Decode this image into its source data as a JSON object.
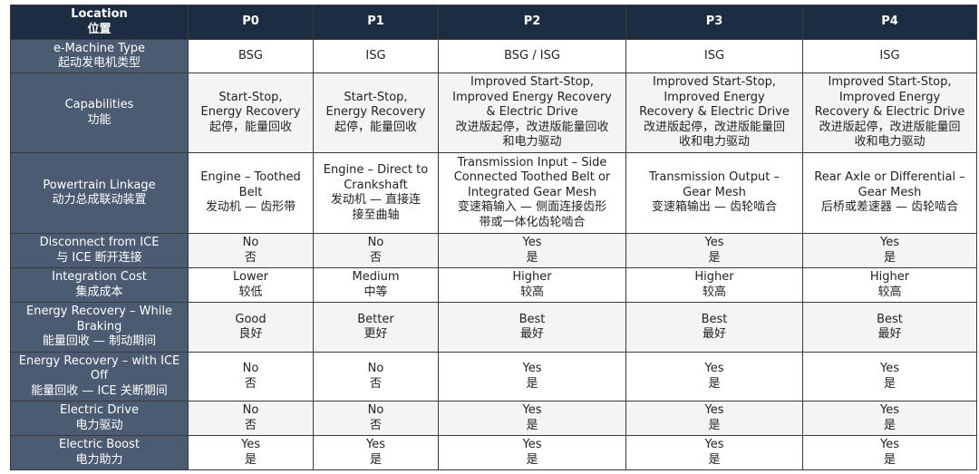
{
  "header": {
    "label": "Location\n位置",
    "columns": [
      "P0",
      "P1",
      "P2",
      "P3",
      "P4"
    ]
  },
  "rows": [
    {
      "label": "e-Machine Type\n起动发电机类型",
      "cells": [
        "BSG",
        "ISG",
        "BSG / ISG",
        "ISG",
        "ISG"
      ]
    },
    {
      "label": "Capabilities\n功能",
      "cells": [
        "Start-Stop,\nEnergy Recovery\n起停，能量回收",
        "Start-Stop,\nEnergy Recovery\n起停，能量回收",
        "Improved Start-Stop,\nImproved Energy Recovery\n& Electric Drive\n改进版起停，改进版能量回收\n和电力驱动",
        "Improved Start-Stop,\nImproved Energy\nRecovery & Electric Drive\n改进版起停，改进版能量回\n收和电力驱动",
        "Improved Start-Stop,\nImproved Energy\nRecovery & Electric Drive\n改进版起停，改进版能量回\n收和电力驱动"
      ]
    },
    {
      "label": "Powertrain Linkage\n动力总成联动装置",
      "cells": [
        "Engine – Toothed\nBelt\n发动机 — 齿形带",
        "Engine – Direct to\nCrankshaft\n发动机 — 直接连\n接至曲轴",
        "Transmission Input – Side\nConnected Toothed Belt or\nIntegrated Gear Mesh\n变速箱输入 — 侧面连接齿形\n带或一体化齿轮啮合",
        "Transmission Output –\nGear Mesh\n变速箱输出 — 齿轮啮合",
        "Rear Axle or Differential –\nGear Mesh\n后桥或差速器 — 齿轮啮合"
      ]
    },
    {
      "label": "Disconnect from ICE\n与 ICE 断开连接",
      "cells": [
        "No\n否",
        "No\n否",
        "Yes\n是",
        "Yes\n是",
        "Yes\n是"
      ]
    },
    {
      "label": "Integration Cost\n集成成本",
      "cells": [
        "Lower\n较低",
        "Medium\n中等",
        "Higher\n较高",
        "Higher\n较高",
        "Higher\n较高"
      ]
    },
    {
      "label": "Energy Recovery – While\nBraking\n能量回收 — 制动期间",
      "cells": [
        "Good\n良好",
        "Better\n更好",
        "Best\n最好",
        "Best\n最好",
        "Best\n最好"
      ]
    },
    {
      "label": "Energy Recovery – with ICE\nOff\n能量回收 — ICE 关断期间",
      "cells": [
        "No\n否",
        "No\n否",
        "Yes\n是",
        "Yes\n是",
        "Yes\n是"
      ]
    },
    {
      "label": "Electric Drive\n电力驱动",
      "cells": [
        "No\n否",
        "No\n否",
        "Yes\n是",
        "Yes\n是",
        "Yes\n是"
      ]
    },
    {
      "label": "Electric Boost\n电力助力",
      "cells": [
        "Yes\n是",
        "Yes\n是",
        "Yes\n是",
        "Yes\n是",
        "Yes\n是"
      ]
    }
  ],
  "colors": {
    "header_bg": "#1c2d42",
    "label_bg": "#4b5b71",
    "alt_row_bg": "#f4f4f4"
  }
}
